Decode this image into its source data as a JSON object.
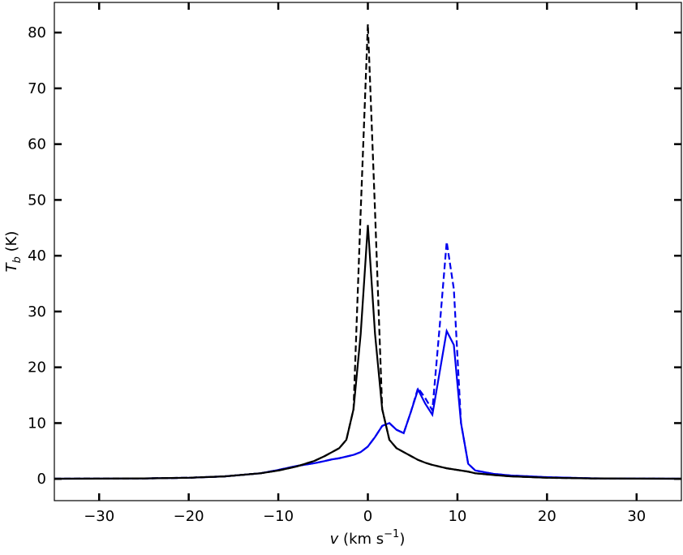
{
  "chart_data": {
    "type": "line",
    "xlabel": {
      "symbol": "v",
      "unit": "(km s",
      "exponent": "−1",
      "close": ")"
    },
    "ylabel": {
      "symbol": "T",
      "subscript": "b",
      "unit": "(K)"
    },
    "x": [
      -35,
      -30,
      -25,
      -20,
      -16,
      -12,
      -10,
      -8,
      -6,
      -4.8,
      -4,
      -3.2,
      -2.4,
      -1.6,
      -0.8,
      0,
      0.8,
      1.6,
      2.4,
      3.2,
      4,
      4.8,
      5.6,
      6.4,
      7.2,
      8,
      8.8,
      9.6,
      10.4,
      11.2,
      12,
      14,
      16,
      20,
      25,
      30,
      35
    ],
    "series": [
      {
        "color": "#0000ee",
        "linestyle": "dashed",
        "values": [
          0.03,
          0.05,
          0.08,
          0.2,
          0.45,
          1.0,
          1.6,
          2.3,
          2.8,
          3.2,
          3.5,
          3.7,
          4.0,
          4.3,
          4.8,
          5.8,
          7.5,
          9.5,
          10,
          8.8,
          8.2,
          12,
          16.3,
          14.5,
          12.3,
          27,
          42.5,
          34,
          10,
          2.7,
          1.5,
          0.9,
          0.6,
          0.3,
          0.1,
          0.05,
          0.03
        ]
      },
      {
        "color": "#0000ee",
        "linestyle": "solid",
        "values": [
          0.03,
          0.05,
          0.08,
          0.2,
          0.45,
          1.0,
          1.6,
          2.3,
          2.8,
          3.2,
          3.5,
          3.7,
          4.0,
          4.3,
          4.8,
          5.8,
          7.5,
          9.5,
          10,
          8.8,
          8.2,
          12,
          16,
          13.5,
          11.5,
          19,
          26.5,
          24,
          10,
          2.7,
          1.5,
          0.9,
          0.6,
          0.3,
          0.1,
          0.05,
          0.03
        ]
      },
      {
        "color": "#000000",
        "linestyle": "dashed",
        "values": [
          0.03,
          0.05,
          0.08,
          0.2,
          0.45,
          1.0,
          1.5,
          2.2,
          3.2,
          4.1,
          4.8,
          5.5,
          7,
          12.5,
          48,
          81.5,
          48,
          12.5,
          7,
          5.5,
          4.8,
          4.1,
          3.4,
          2.9,
          2.5,
          2.2,
          1.9,
          1.7,
          1.5,
          1.3,
          1.0,
          0.7,
          0.45,
          0.2,
          0.08,
          0.05,
          0.03
        ]
      },
      {
        "color": "#000000",
        "linestyle": "solid",
        "values": [
          0.03,
          0.05,
          0.08,
          0.2,
          0.45,
          1.0,
          1.5,
          2.2,
          3.2,
          4.1,
          4.8,
          5.5,
          7,
          12.5,
          26,
          45.5,
          26,
          12.5,
          7,
          5.5,
          4.8,
          4.1,
          3.4,
          2.9,
          2.5,
          2.2,
          1.9,
          1.7,
          1.5,
          1.3,
          1.0,
          0.7,
          0.45,
          0.2,
          0.08,
          0.05,
          0.03
        ]
      }
    ],
    "xlim": [
      -35,
      35
    ],
    "ylim": [
      -3.9,
      85.4
    ],
    "xticks": [
      {
        "value": -30,
        "label": "−30"
      },
      {
        "value": -20,
        "label": "−20"
      },
      {
        "value": -10,
        "label": "−10"
      },
      0,
      10,
      20,
      30
    ],
    "yticks": [
      0,
      10,
      20,
      30,
      40,
      50,
      60,
      70,
      80
    ]
  }
}
